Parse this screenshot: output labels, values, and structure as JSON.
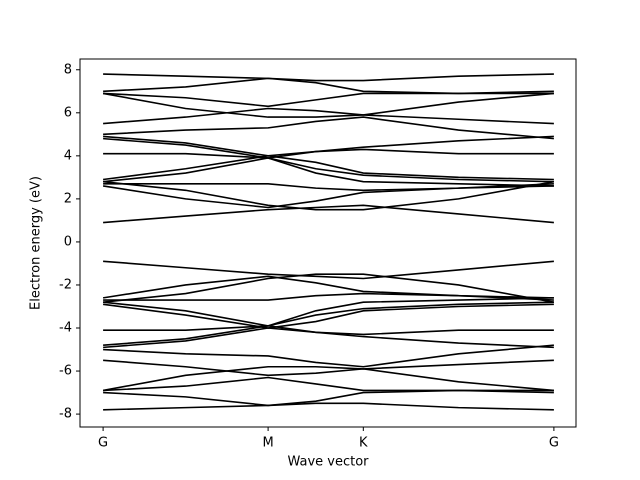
{
  "chart_data": {
    "type": "line",
    "xlabel": "Wave vector",
    "ylabel": "Electron energy (eV)",
    "x": [
      0,
      0.5,
      1,
      1.289,
      1.577,
      2.154,
      2.732
    ],
    "xlim": [
      -0.14,
      2.866
    ],
    "xticks": [
      {
        "value": 0,
        "label": "G"
      },
      {
        "value": 1,
        "label": "M"
      },
      {
        "value": 1.577,
        "label": "K"
      },
      {
        "value": 2.732,
        "label": "G"
      }
    ],
    "ylim": [
      -8.6,
      8.5
    ],
    "yticks": [
      -8,
      -6,
      -4,
      -2,
      0,
      2,
      4,
      6,
      8
    ],
    "color": "#000000",
    "series": [
      {
        "values": [
          0.9,
          1.2,
          1.5,
          1.6,
          1.7,
          1.3,
          0.9
        ]
      },
      {
        "values": [
          2.6,
          2.0,
          1.6,
          1.9,
          2.3,
          2.5,
          2.6
        ]
      },
      {
        "values": [
          2.7,
          2.7,
          2.7,
          2.5,
          2.4,
          2.5,
          2.7
        ]
      },
      {
        "values": [
          2.8,
          2.4,
          1.7,
          1.5,
          1.5,
          2.0,
          2.8
        ]
      },
      {
        "values": [
          2.8,
          3.2,
          3.9,
          3.4,
          3.1,
          2.9,
          2.8
        ]
      },
      {
        "values": [
          2.9,
          3.4,
          4.0,
          3.7,
          3.2,
          3.0,
          2.9
        ]
      },
      {
        "values": [
          4.1,
          4.1,
          3.9,
          4.2,
          4.3,
          4.1,
          4.1
        ]
      },
      {
        "values": [
          4.8,
          4.5,
          3.9,
          3.2,
          2.8,
          2.7,
          2.6
        ]
      },
      {
        "values": [
          4.9,
          4.6,
          4.0,
          4.2,
          4.4,
          4.7,
          4.9
        ]
      },
      {
        "values": [
          5.0,
          5.2,
          5.3,
          5.6,
          5.8,
          5.2,
          4.8
        ]
      },
      {
        "values": [
          5.5,
          5.8,
          6.2,
          6.1,
          5.9,
          5.7,
          5.5
        ]
      },
      {
        "values": [
          6.9,
          6.2,
          5.8,
          5.8,
          5.9,
          6.5,
          6.9
        ]
      },
      {
        "values": [
          6.9,
          6.7,
          6.3,
          6.6,
          6.9,
          6.9,
          6.9
        ]
      },
      {
        "values": [
          7.0,
          7.2,
          7.6,
          7.4,
          7.0,
          6.9,
          7.0
        ]
      },
      {
        "values": [
          7.8,
          7.7,
          7.6,
          7.5,
          7.5,
          7.7,
          7.8
        ]
      },
      {
        "values": [
          -0.9,
          -1.2,
          -1.5,
          -1.6,
          -1.7,
          -1.3,
          -0.9
        ]
      },
      {
        "values": [
          -2.6,
          -2.0,
          -1.6,
          -1.9,
          -2.3,
          -2.5,
          -2.6
        ]
      },
      {
        "values": [
          -2.7,
          -2.7,
          -2.7,
          -2.5,
          -2.4,
          -2.5,
          -2.7
        ]
      },
      {
        "values": [
          -2.8,
          -2.4,
          -1.7,
          -1.5,
          -1.5,
          -2.0,
          -2.8
        ]
      },
      {
        "values": [
          -2.8,
          -3.2,
          -3.9,
          -3.4,
          -3.1,
          -2.9,
          -2.8
        ]
      },
      {
        "values": [
          -2.9,
          -3.4,
          -4.0,
          -3.7,
          -3.2,
          -3.0,
          -2.9
        ]
      },
      {
        "values": [
          -4.1,
          -4.1,
          -3.9,
          -4.2,
          -4.3,
          -4.1,
          -4.1
        ]
      },
      {
        "values": [
          -4.8,
          -4.5,
          -3.9,
          -3.2,
          -2.8,
          -2.7,
          -2.6
        ]
      },
      {
        "values": [
          -4.9,
          -4.6,
          -4.0,
          -4.2,
          -4.4,
          -4.7,
          -4.9
        ]
      },
      {
        "values": [
          -5.0,
          -5.2,
          -5.3,
          -5.6,
          -5.8,
          -5.2,
          -4.8
        ]
      },
      {
        "values": [
          -5.5,
          -5.8,
          -6.2,
          -6.1,
          -5.9,
          -5.7,
          -5.5
        ]
      },
      {
        "values": [
          -6.9,
          -6.2,
          -5.8,
          -5.8,
          -5.9,
          -6.5,
          -6.9
        ]
      },
      {
        "values": [
          -6.9,
          -6.7,
          -6.3,
          -6.6,
          -6.9,
          -6.9,
          -6.9
        ]
      },
      {
        "values": [
          -7.0,
          -7.2,
          -7.6,
          -7.4,
          -7.0,
          -6.9,
          -7.0
        ]
      },
      {
        "values": [
          -7.8,
          -7.7,
          -7.6,
          -7.5,
          -7.5,
          -7.7,
          -7.8
        ]
      }
    ]
  }
}
